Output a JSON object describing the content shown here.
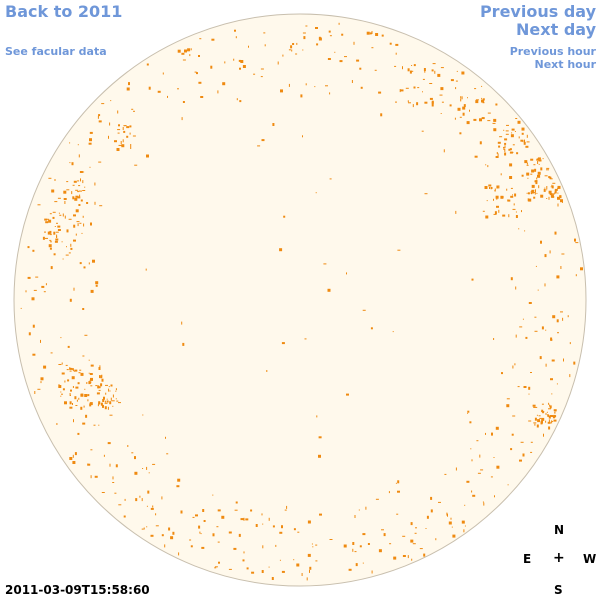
{
  "nav": {
    "back_label": "Back to 2011",
    "facular_label": "See facular data",
    "prev_day_label": "Previous day",
    "next_day_label": "Next day",
    "prev_hour_label": "Previous hour",
    "next_hour_label": "Next hour"
  },
  "compass": {
    "north": "N",
    "south": "S",
    "east": "E",
    "west": "W",
    "center": "+"
  },
  "timestamp": "2011-03-09T15:58:60",
  "colors": {
    "link": "#6f97d9",
    "disk_fill": "#fff9ec",
    "disk_stroke": "#c8bfae",
    "facula": "#ef8a10"
  }
}
